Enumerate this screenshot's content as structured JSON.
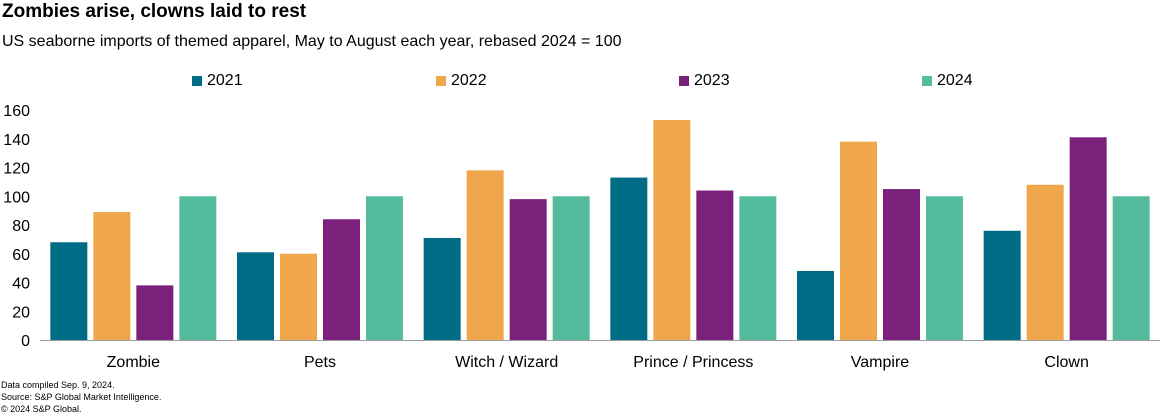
{
  "chart_data": {
    "type": "bar",
    "title": "Zombies arise, clowns laid to rest",
    "subtitle": "US seaborne imports of themed apparel, May to August each year, rebased 2024 = 100",
    "categories": [
      "Zombie",
      "Pets",
      "Witch / Wizard",
      "Prince / Princess",
      "Vampire",
      "Clown"
    ],
    "series": [
      {
        "name": "2021",
        "color": "#006d87",
        "values": [
          68,
          61,
          71,
          113,
          48,
          76
        ]
      },
      {
        "name": "2022",
        "color": "#f0a74b",
        "values": [
          89,
          60,
          118,
          153,
          138,
          108
        ]
      },
      {
        "name": "2023",
        "color": "#7b217c",
        "values": [
          38,
          84,
          98,
          104,
          105,
          141
        ]
      },
      {
        "name": "2024",
        "color": "#55bb9f",
        "values": [
          100,
          100,
          100,
          100,
          100,
          100
        ]
      }
    ],
    "yticks": [
      "0",
      "20",
      "40",
      "60",
      "80",
      "100",
      "120",
      "140",
      "160"
    ],
    "ylim": [
      0,
      160
    ],
    "xlabel": "",
    "ylabel": "",
    "grid": false,
    "legend_position": "top"
  },
  "footer": {
    "line1": "Data compiled Sep. 9, 2024.",
    "line2": "Source: S&P Global Market Intelligence.",
    "line3": "© 2024 S&P Global."
  }
}
